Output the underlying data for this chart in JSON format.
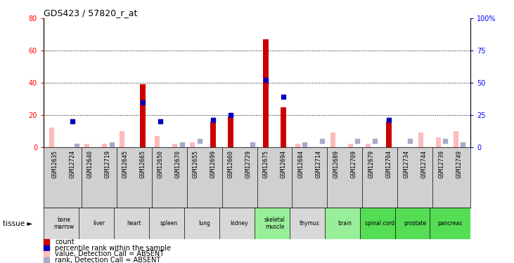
{
  "title": "GDS423 / 57820_r_at",
  "samples": [
    "GSM12635",
    "GSM12724",
    "GSM12640",
    "GSM12719",
    "GSM12645",
    "GSM12665",
    "GSM12650",
    "GSM12670",
    "GSM12655",
    "GSM12699",
    "GSM12660",
    "GSM12729",
    "GSM12675",
    "GSM12694",
    "GSM12684",
    "GSM12714",
    "GSM12689",
    "GSM12709",
    "GSM12679",
    "GSM12704",
    "GSM12734",
    "GSM12744",
    "GSM12739",
    "GSM12749"
  ],
  "tissues": [
    {
      "name": "bone\nmarrow",
      "start": 0,
      "end": 2,
      "color": "#d8d8d8"
    },
    {
      "name": "liver",
      "start": 2,
      "end": 4,
      "color": "#d8d8d8"
    },
    {
      "name": "heart",
      "start": 4,
      "end": 6,
      "color": "#d8d8d8"
    },
    {
      "name": "spleen",
      "start": 6,
      "end": 8,
      "color": "#d8d8d8"
    },
    {
      "name": "lung",
      "start": 8,
      "end": 10,
      "color": "#d8d8d8"
    },
    {
      "name": "kidney",
      "start": 10,
      "end": 12,
      "color": "#d8d8d8"
    },
    {
      "name": "skeletal\nmuscle",
      "start": 12,
      "end": 14,
      "color": "#99ee99"
    },
    {
      "name": "thymus",
      "start": 14,
      "end": 16,
      "color": "#d8d8d8"
    },
    {
      "name": "brain",
      "start": 16,
      "end": 18,
      "color": "#99ee99"
    },
    {
      "name": "spinal cord",
      "start": 18,
      "end": 20,
      "color": "#55dd55"
    },
    {
      "name": "prostate",
      "start": 20,
      "end": 22,
      "color": "#55dd55"
    },
    {
      "name": "pancreas",
      "start": 22,
      "end": 24,
      "color": "#55dd55"
    }
  ],
  "red_bars": [
    0,
    0,
    0,
    0,
    0,
    39,
    0,
    0,
    0,
    16,
    19,
    0,
    67,
    25,
    0,
    0,
    0,
    0,
    0,
    16,
    0,
    0,
    0,
    0
  ],
  "blue_squares": [
    0,
    20,
    0,
    0,
    0,
    35,
    20,
    0,
    0,
    21,
    25,
    0,
    52,
    39,
    0,
    0,
    0,
    0,
    0,
    21,
    0,
    0,
    0,
    0
  ],
  "pink_bars": [
    12,
    0,
    2,
    2,
    10,
    0,
    7,
    2,
    3,
    0,
    0,
    0,
    0,
    0,
    2,
    0,
    9,
    2,
    2,
    0,
    0,
    9,
    6,
    10
  ],
  "lightblue_squares": [
    0,
    1,
    0,
    2,
    0,
    0,
    0,
    2,
    5,
    0,
    0,
    2,
    0,
    0,
    2,
    5,
    0,
    5,
    5,
    0,
    5,
    0,
    5,
    2
  ],
  "ylim_left": [
    0,
    80
  ],
  "ylim_right": [
    0,
    100
  ],
  "yticks_left": [
    0,
    20,
    40,
    60,
    80
  ],
  "yticks_right": [
    0,
    25,
    50,
    75,
    100
  ],
  "ytick_labels_right": [
    "0",
    "25",
    "50",
    "75",
    "100%"
  ],
  "red_color": "#cc0000",
  "blue_color": "#0000bb",
  "pink_color": "#ffbbbb",
  "lightblue_color": "#aaaacc",
  "sample_bg": "#d0d0d0",
  "fig_width": 7.31,
  "fig_height": 3.75,
  "dpi": 100
}
